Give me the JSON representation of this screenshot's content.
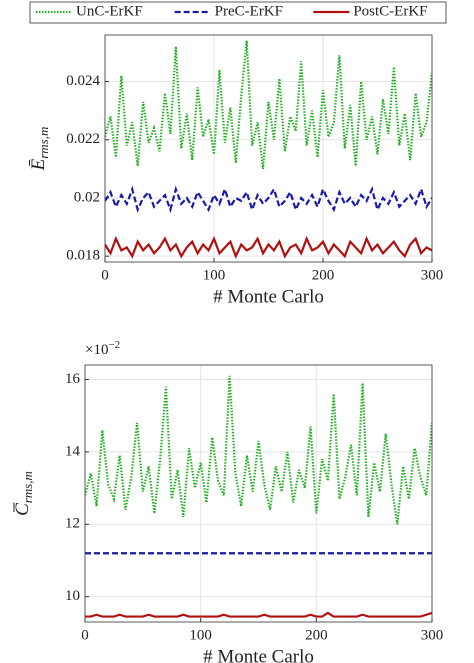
{
  "chart_data": [
    {
      "type": "line",
      "legend": true,
      "legend_loc": "top",
      "grid": true,
      "xlabel": "# Monte Carlo",
      "ylabel": {
        "main": "Ē",
        "sub": "rms,m"
      },
      "xlim": [
        0,
        300
      ],
      "xticks": [
        0,
        100,
        200,
        300
      ],
      "ylim": [
        0.0178,
        0.0256
      ],
      "yticks": [
        0.018,
        0.02,
        0.022,
        0.024
      ],
      "x": [
        0,
        5,
        10,
        15,
        20,
        25,
        30,
        35,
        40,
        45,
        50,
        55,
        60,
        65,
        70,
        75,
        80,
        85,
        90,
        95,
        100,
        105,
        110,
        115,
        120,
        125,
        130,
        135,
        140,
        145,
        150,
        155,
        160,
        165,
        170,
        175,
        180,
        185,
        190,
        195,
        200,
        205,
        210,
        215,
        220,
        225,
        230,
        235,
        240,
        245,
        250,
        255,
        260,
        265,
        270,
        275,
        280,
        285,
        290,
        295,
        300
      ],
      "series": [
        {
          "name": "UnC-ErKF",
          "color": "#22b022",
          "style": "dotted",
          "values": [
            0.0221,
            0.0228,
            0.0214,
            0.0242,
            0.0218,
            0.0226,
            0.0211,
            0.0233,
            0.0219,
            0.0224,
            0.0216,
            0.0236,
            0.0222,
            0.0252,
            0.0217,
            0.0229,
            0.0213,
            0.0238,
            0.0221,
            0.0227,
            0.0215,
            0.0244,
            0.0219,
            0.0231,
            0.0212,
            0.0235,
            0.0254,
            0.0218,
            0.0226,
            0.021,
            0.0233,
            0.022,
            0.0241,
            0.0216,
            0.0228,
            0.0223,
            0.0247,
            0.0218,
            0.023,
            0.0214,
            0.0237,
            0.0221,
            0.0226,
            0.0249,
            0.0217,
            0.0232,
            0.0211,
            0.024,
            0.022,
            0.0228,
            0.0215,
            0.0234,
            0.0222,
            0.0245,
            0.0218,
            0.0229,
            0.0213,
            0.0236,
            0.0221,
            0.0226,
            0.0243
          ]
        },
        {
          "name": "PreC-ErKF",
          "color": "#1a1aa8",
          "style": "dashed",
          "values": [
            0.0199,
            0.0202,
            0.0197,
            0.0201,
            0.0198,
            0.0203,
            0.0196,
            0.02,
            0.0202,
            0.0197,
            0.0199,
            0.0201,
            0.0196,
            0.0203,
            0.0198,
            0.02,
            0.0197,
            0.0202,
            0.0199,
            0.0196,
            0.0201,
            0.0198,
            0.0203,
            0.0197,
            0.02,
            0.0199,
            0.0202,
            0.0196,
            0.0201,
            0.0198,
            0.02,
            0.0203,
            0.0197,
            0.0199,
            0.0202,
            0.0196,
            0.02,
            0.0198,
            0.0201,
            0.0197,
            0.0203,
            0.0199,
            0.0196,
            0.0202,
            0.0198,
            0.02,
            0.0197,
            0.0201,
            0.0199,
            0.0203,
            0.0196,
            0.02,
            0.0198,
            0.0202,
            0.0197,
            0.0199,
            0.0201,
            0.0198,
            0.0203,
            0.0197,
            0.02
          ]
        },
        {
          "name": "PostC-ErKF",
          "color": "#b01010",
          "style": "solid",
          "values": [
            0.0184,
            0.0181,
            0.0186,
            0.0182,
            0.0183,
            0.018,
            0.0185,
            0.0182,
            0.0184,
            0.0181,
            0.0183,
            0.0186,
            0.0182,
            0.0184,
            0.018,
            0.0183,
            0.0185,
            0.0181,
            0.0184,
            0.0182,
            0.0186,
            0.0181,
            0.0183,
            0.0185,
            0.018,
            0.0184,
            0.0182,
            0.0183,
            0.0186,
            0.0181,
            0.0184,
            0.0182,
            0.0185,
            0.018,
            0.0183,
            0.0184,
            0.0181,
            0.0186,
            0.0182,
            0.0183,
            0.0185,
            0.0181,
            0.0184,
            0.0182,
            0.018,
            0.0185,
            0.0183,
            0.0181,
            0.0186,
            0.0182,
            0.0184,
            0.0181,
            0.0183,
            0.0185,
            0.0182,
            0.018,
            0.0184,
            0.0186,
            0.0181,
            0.0183,
            0.0182
          ]
        }
      ]
    },
    {
      "type": "line",
      "grid": true,
      "xlabel": "# Monte Carlo",
      "ylabel": {
        "main": "C̅",
        "sub": "rms,m"
      },
      "multiplier": {
        "base": "×10",
        "exponent": "−2"
      },
      "xlim": [
        0,
        300
      ],
      "xticks": [
        0,
        100,
        200,
        300
      ],
      "ylim": [
        9.3,
        16.4
      ],
      "yticks": [
        10,
        12,
        14,
        16
      ],
      "x": [
        0,
        5,
        10,
        15,
        20,
        25,
        30,
        35,
        40,
        45,
        50,
        55,
        60,
        65,
        70,
        75,
        80,
        85,
        90,
        95,
        100,
        105,
        110,
        115,
        120,
        125,
        130,
        135,
        140,
        145,
        150,
        155,
        160,
        165,
        170,
        175,
        180,
        185,
        190,
        195,
        200,
        205,
        210,
        215,
        220,
        225,
        230,
        235,
        240,
        245,
        250,
        255,
        260,
        265,
        270,
        275,
        280,
        285,
        290,
        295,
        300
      ],
      "series": [
        {
          "color": "#22b022",
          "style": "dotted",
          "values": [
            12.8,
            13.4,
            12.5,
            14.6,
            13.1,
            12.7,
            13.9,
            12.4,
            13.3,
            14.8,
            12.9,
            13.6,
            12.3,
            13.8,
            15.8,
            12.7,
            13.5,
            12.2,
            14.1,
            13.0,
            13.7,
            12.6,
            14.4,
            13.2,
            12.8,
            16.1,
            13.4,
            12.5,
            13.9,
            12.9,
            14.3,
            13.1,
            12.4,
            13.6,
            12.9,
            14.0,
            12.6,
            13.5,
            13.0,
            14.7,
            12.3,
            13.8,
            13.2,
            15.6,
            12.7,
            13.3,
            14.2,
            12.8,
            15.9,
            12.2,
            13.7,
            12.9,
            14.5,
            13.1,
            12.0,
            13.6,
            12.7,
            14.1,
            13.3,
            12.8,
            14.8
          ]
        },
        {
          "color": "#1a1aa8",
          "style": "dashed",
          "values": [
            11.2,
            11.2,
            11.2,
            11.2,
            11.2,
            11.2,
            11.2,
            11.2,
            11.2,
            11.2,
            11.2,
            11.2,
            11.2,
            11.2,
            11.2,
            11.2,
            11.2,
            11.2,
            11.2,
            11.2,
            11.2,
            11.2,
            11.2,
            11.2,
            11.2,
            11.2,
            11.2,
            11.2,
            11.2,
            11.2,
            11.2,
            11.2,
            11.2,
            11.2,
            11.2,
            11.2,
            11.2,
            11.2,
            11.2,
            11.2,
            11.2,
            11.2,
            11.2,
            11.2,
            11.2,
            11.2,
            11.2,
            11.2,
            11.2,
            11.2,
            11.2,
            11.2,
            11.2,
            11.2,
            11.2,
            11.2,
            11.2,
            11.2,
            11.2,
            11.2,
            11.2
          ]
        },
        {
          "color": "#b01010",
          "style": "solid",
          "values": [
            9.45,
            9.45,
            9.5,
            9.45,
            9.45,
            9.45,
            9.5,
            9.45,
            9.45,
            9.45,
            9.45,
            9.5,
            9.45,
            9.45,
            9.45,
            9.45,
            9.45,
            9.5,
            9.45,
            9.45,
            9.45,
            9.45,
            9.45,
            9.45,
            9.5,
            9.45,
            9.45,
            9.45,
            9.45,
            9.45,
            9.45,
            9.5,
            9.45,
            9.45,
            9.45,
            9.45,
            9.45,
            9.45,
            9.45,
            9.5,
            9.45,
            9.45,
            9.55,
            9.45,
            9.45,
            9.45,
            9.45,
            9.45,
            9.5,
            9.45,
            9.45,
            9.45,
            9.45,
            9.45,
            9.45,
            9.45,
            9.45,
            9.45,
            9.45,
            9.5,
            9.55
          ]
        }
      ]
    }
  ]
}
